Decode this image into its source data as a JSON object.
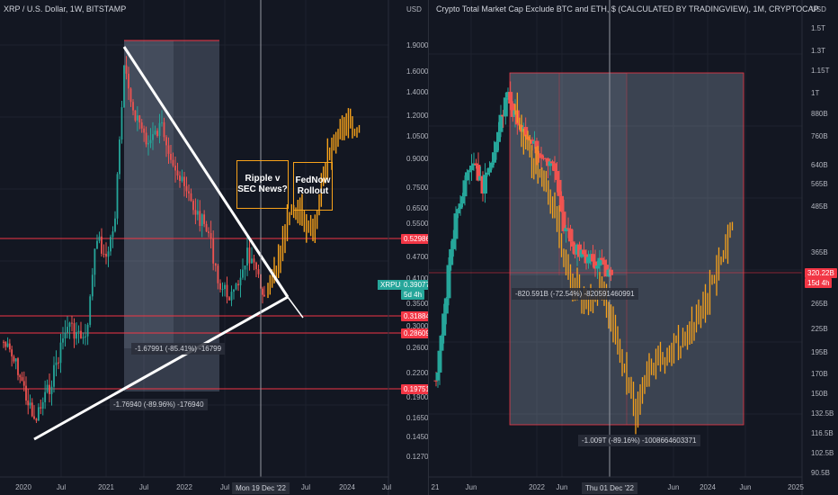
{
  "left_chart": {
    "title": "XRP / U.S. Dollar, 1W, BITSTAMP",
    "currency": "USD",
    "price_ticks": [
      "1.90000",
      "1.60000",
      "1.40000",
      "1.20000",
      "1.05000",
      "0.90000",
      "0.75000",
      "0.65000",
      "0.55000",
      "0.47000",
      "0.41000",
      "0.35000",
      "0.30000",
      "0.26000",
      "0.22000",
      "0.19000",
      "0.16500",
      "0.14500",
      "0.12700"
    ],
    "time_labels": [
      "2020",
      "Jul",
      "2021",
      "Jul",
      "2022",
      "Jul",
      "Jul",
      "2024",
      "Jul"
    ],
    "cursor_time": "Mon 19 Dec '22",
    "symbol_badge": "XRPUSD",
    "symbol_price": "0.39077",
    "symbol_countdown": "5d 4h",
    "levels": [
      "0.52986",
      "0.31884",
      "0.28609",
      "0.19751"
    ],
    "measure_1": "-1.67991 (-85.41%) -16799",
    "measure_2": "-1.76940 (-89.96%) -176940",
    "notes": [
      "Ripple v SEC News?",
      "FedNow Rollout"
    ],
    "colors": {
      "level_line": "#f23645",
      "up": "#26a69a",
      "down": "#ef5350",
      "projection": "#f7a21b",
      "trend": "#ffffff",
      "box": "#b2c6e0"
    }
  },
  "right_chart": {
    "title": "Crypto Total Market Cap Exclude BTC and ETH, $ (CALCULATED BY TRADINGVIEW), 1M, CRYPTOCAP",
    "currency": "USD",
    "price_ticks": [
      "1.5T",
      "1.3T",
      "1.15T",
      "1T",
      "880B",
      "760B",
      "640B",
      "565B",
      "485B",
      "365B",
      "265B",
      "225B",
      "195B",
      "170B",
      "150B",
      "132.5B",
      "116.5B",
      "102.5B",
      "90.5B"
    ],
    "time_labels": [
      "21",
      "Jun",
      "2022",
      "Jun",
      "Jun",
      "2024",
      "Jun",
      "2025"
    ],
    "cursor_time": "Thu 01 Dec '22",
    "price_badge": "320.22B",
    "price_countdown": "15d 4h",
    "measure_1": "-820.591B (-72.54%) -820591460991",
    "measure_2": "-1.009T (-89.16%) -1008664603371"
  }
}
